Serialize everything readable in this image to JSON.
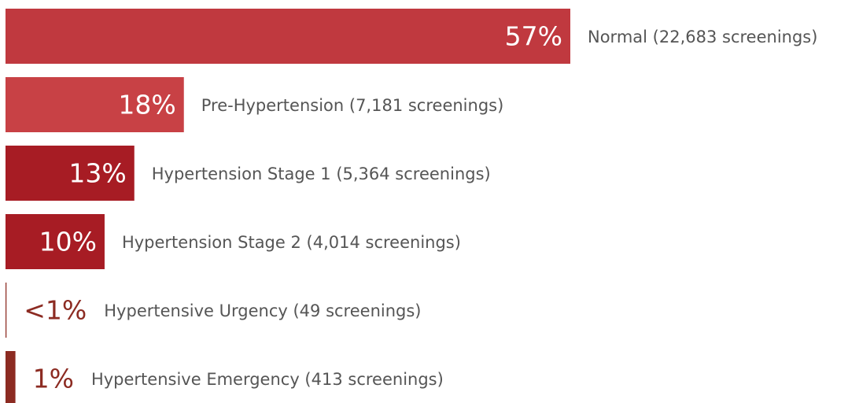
{
  "chart_data": {
    "type": "bar",
    "orientation": "horizontal",
    "categories": [
      "Normal (22,683 screenings)",
      "Pre-Hypertension (7,181 screenings)",
      "Hypertension Stage 1 (5,364 screenings)",
      "Hypertension Stage 2 (4,014 screenings)",
      "Hypertensive Urgency (49 screenings)",
      "Hypertensive Emergency (413 screenings)"
    ],
    "values": [
      57,
      18,
      13,
      10,
      0.1,
      1
    ],
    "value_labels": [
      "57%",
      "18%",
      "13%",
      "10%",
      "<1%",
      "1%"
    ],
    "colors": [
      "#c0393f",
      "#c84145",
      "#a71c24",
      "#a71c24",
      "#8c2b22",
      "#8c2b22"
    ]
  }
}
